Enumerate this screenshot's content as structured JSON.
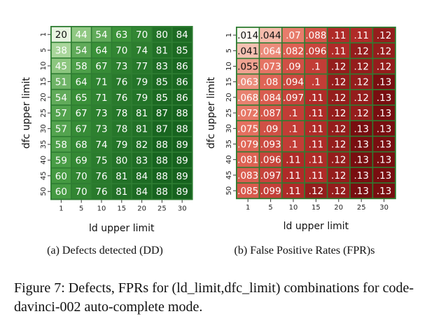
{
  "figure_caption": "Figure 7: Defects, FPRs for (ld_limit,dfc_limit) combinations for code-davinci-002 auto-complete mode.",
  "chart_data": [
    {
      "type": "heatmap",
      "subcaption": "(a) Defects detected (DD)",
      "xlabel": "ld upper limit",
      "ylabel": "dfc upper limit",
      "x_ticks": [
        "1",
        "5",
        "10",
        "15",
        "20",
        "25",
        "30"
      ],
      "y_ticks": [
        "1",
        "5",
        "10",
        "15",
        "20",
        "25",
        "30",
        "35",
        "40",
        "45",
        "50"
      ],
      "colormap": "green",
      "values": [
        [
          "20",
          "44",
          "54",
          "63",
          "70",
          "80",
          "84"
        ],
        [
          "38",
          "54",
          "64",
          "70",
          "74",
          "81",
          "85"
        ],
        [
          "45",
          "58",
          "67",
          "73",
          "77",
          "83",
          "86"
        ],
        [
          "51",
          "64",
          "71",
          "76",
          "79",
          "85",
          "86"
        ],
        [
          "54",
          "65",
          "71",
          "76",
          "79",
          "85",
          "86"
        ],
        [
          "57",
          "67",
          "73",
          "78",
          "81",
          "87",
          "88"
        ],
        [
          "57",
          "67",
          "73",
          "78",
          "81",
          "87",
          "88"
        ],
        [
          "58",
          "68",
          "74",
          "79",
          "82",
          "88",
          "89"
        ],
        [
          "59",
          "69",
          "75",
          "80",
          "83",
          "88",
          "89"
        ],
        [
          "60",
          "70",
          "76",
          "81",
          "84",
          "88",
          "89"
        ],
        [
          "60",
          "70",
          "76",
          "81",
          "84",
          "88",
          "89"
        ]
      ]
    },
    {
      "type": "heatmap",
      "subcaption": "(b) False Positive Rates (FPR)s",
      "xlabel": "ld upper limit",
      "ylabel": "dfc upper limit",
      "x_ticks": [
        "1",
        "5",
        "10",
        "15",
        "20",
        "25",
        "30"
      ],
      "y_ticks": [
        "1",
        "5",
        "10",
        "15",
        "20",
        "25",
        "30",
        "35",
        "40",
        "45",
        "50"
      ],
      "colormap": "red",
      "values": [
        [
          ".014",
          ".044",
          ".07",
          ".088",
          ".11",
          ".11",
          ".12"
        ],
        [
          ".041",
          ".064",
          ".082",
          ".096",
          ".11",
          ".12",
          ".12"
        ],
        [
          ".055",
          ".073",
          ".09",
          ".1",
          ".12",
          ".12",
          ".12"
        ],
        [
          ".063",
          ".08",
          ".094",
          ".1",
          ".12",
          ".12",
          ".13"
        ],
        [
          ".068",
          ".084",
          ".097",
          ".11",
          ".12",
          ".12",
          ".13"
        ],
        [
          ".072",
          ".087",
          ".1",
          ".11",
          ".12",
          ".12",
          ".13"
        ],
        [
          ".075",
          ".09",
          ".1",
          ".11",
          ".12",
          ".13",
          ".13"
        ],
        [
          ".079",
          ".093",
          ".1",
          ".11",
          ".12",
          ".13",
          ".13"
        ],
        [
          ".081",
          ".096",
          ".11",
          ".11",
          ".12",
          ".13",
          ".13"
        ],
        [
          ".083",
          ".097",
          ".11",
          ".11",
          ".12",
          ".13",
          ".13"
        ],
        [
          ".085",
          ".099",
          ".11",
          ".12",
          ".12",
          ".13",
          ".13"
        ]
      ]
    }
  ]
}
